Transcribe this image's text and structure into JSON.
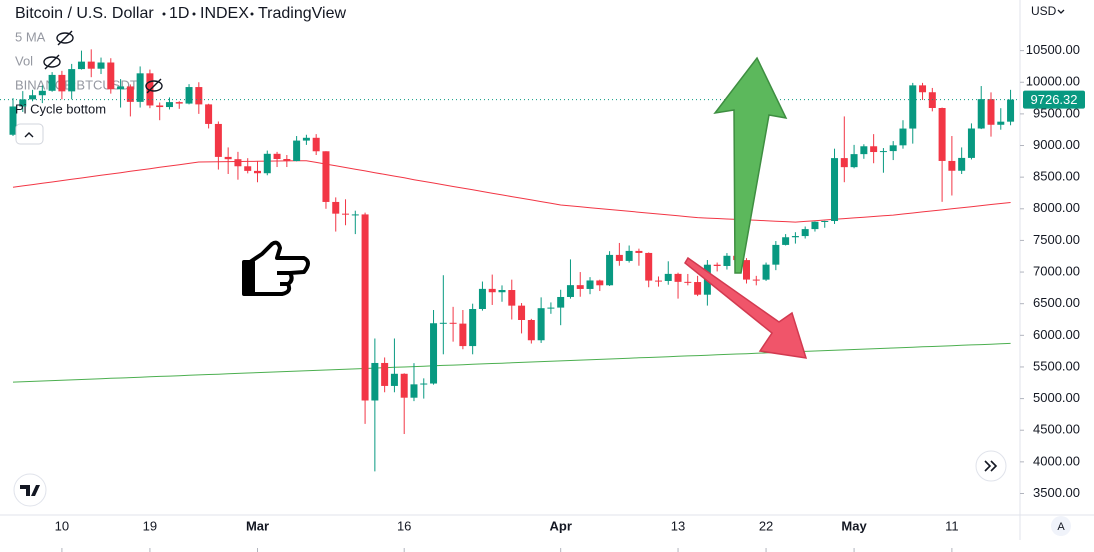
{
  "header": {
    "title": "Bitcoin / U.S. Dollar",
    "interval": "1D",
    "exchange": "INDEX",
    "source": "TradingView",
    "currency": "USD"
  },
  "legend": {
    "indicators": [
      "5 MA",
      "Vol",
      "BINANCE:BTCUSDT",
      "Pi Cycle bottom"
    ]
  },
  "scale_button": "A",
  "chart_data": {
    "type": "candlestick",
    "categories": [
      null,
      null,
      null,
      null,
      null,
      "10",
      null,
      null,
      null,
      null,
      null,
      null,
      null,
      null,
      "19",
      null,
      null,
      null,
      null,
      null,
      null,
      null,
      null,
      null,
      null,
      "Mar",
      null,
      null,
      null,
      null,
      null,
      null,
      null,
      null,
      null,
      null,
      null,
      null,
      null,
      null,
      "16",
      null,
      null,
      null,
      null,
      null,
      null,
      null,
      null,
      null,
      null,
      null,
      null,
      null,
      null,
      null,
      "Apr",
      null,
      null,
      null,
      null,
      null,
      null,
      null,
      null,
      null,
      null,
      null,
      "13",
      null,
      null,
      null,
      null,
      null,
      null,
      null,
      null,
      "22",
      null,
      null,
      null,
      null,
      null,
      null,
      null,
      null,
      "May",
      null,
      null,
      null,
      null,
      null,
      null,
      null,
      null,
      null,
      "11",
      null,
      null,
      null,
      null,
      null,
      null
    ],
    "open": [
      9170,
      9617,
      9729,
      9795,
      9865,
      10116,
      9856,
      10208,
      10326,
      10214,
      10312,
      9889,
      9934,
      9690,
      10141,
      9633,
      9608,
      9686,
      9663,
      9924,
      9650,
      9341,
      8820,
      8784,
      8672,
      8599,
      8562,
      8869,
      8787,
      8755,
      9078,
      9122,
      8909,
      8108,
      7923,
      7909,
      7911,
      4970,
      5563,
      5200,
      5392,
      5014,
      5225,
      5238,
      6191,
      6198,
      6185,
      5830,
      6416,
      6734,
      6681,
      6716,
      6469,
      6242,
      5922,
      6429,
      6438,
      6606,
      6793,
      6733,
      6867,
      6791,
      7271,
      7176,
      7334,
      7302,
      6865,
      6859,
      6971,
      6845,
      6842,
      6642,
      7116,
      7096,
      7257,
      7189,
      6881,
      6880,
      7117,
      7429,
      7550,
      7569,
      7679,
      7795,
      7807,
      8801,
      8658,
      8864,
      8988,
      8897,
      8912,
      9003,
      9268,
      9951,
      9842,
      9593,
      8756,
      8601,
      8804,
      9269,
      9733,
      9328,
      9377
    ],
    "high": [
      9750,
      9860,
      9880,
      9950,
      10160,
      10180,
      10290,
      10500,
      10520,
      10390,
      10380,
      10050,
      9965,
      10250,
      10200,
      9680,
      9760,
      9700,
      9970,
      10000,
      9660,
      9380,
      8970,
      8900,
      8800,
      8750,
      8920,
      8900,
      8850,
      9150,
      9170,
      9180,
      8910,
      8180,
      8150,
      7970,
      7940,
      5950,
      5650,
      5950,
      5400,
      5560,
      5320,
      6400,
      6950,
      6450,
      6400,
      6500,
      6850,
      6960,
      6790,
      6880,
      6510,
      6260,
      6600,
      6520,
      6720,
      7200,
      7000,
      6920,
      6880,
      7330,
      7460,
      7420,
      7370,
      7310,
      6930,
      7170,
      6990,
      6970,
      6940,
      7190,
      7150,
      7300,
      7260,
      7220,
      6940,
      7150,
      7490,
      7600,
      7630,
      7720,
      7800,
      7810,
      8950,
      9460,
      9010,
      9020,
      9180,
      8960,
      9070,
      9400,
      9990,
      9990,
      9910,
      9600,
      9150,
      8970,
      9350,
      9940,
      9840,
      9590,
      9880
    ],
    "low": [
      9150,
      9530,
      9700,
      9670,
      9850,
      9730,
      9730,
      10200,
      10080,
      10130,
      9820,
      9600,
      9460,
      9600,
      9590,
      9400,
      9570,
      9580,
      9650,
      9500,
      9270,
      8620,
      8550,
      8460,
      8560,
      8420,
      8530,
      8660,
      8660,
      8750,
      9010,
      8850,
      8000,
      7640,
      7740,
      7600,
      4600,
      3850,
      5100,
      5100,
      4440,
      4960,
      5000,
      5220,
      5700,
      5900,
      5780,
      5700,
      6390,
      6480,
      6530,
      6250,
      6030,
      5870,
      5880,
      6340,
      6160,
      6580,
      6610,
      6650,
      6700,
      6780,
      7100,
      7150,
      7100,
      6760,
      6770,
      6800,
      6580,
      6790,
      6620,
      6470,
      7010,
      7040,
      7050,
      6820,
      6790,
      6860,
      7030,
      7420,
      7450,
      7530,
      7640,
      7700,
      7760,
      8420,
      8640,
      8790,
      8720,
      8570,
      8770,
      8950,
      9030,
      9720,
      9540,
      8110,
      8210,
      8550,
      8780,
      9260,
      9140,
      9250,
      9320
    ],
    "close": [
      9617,
      9729,
      9795,
      9865,
      10116,
      9856,
      10208,
      10326,
      10214,
      10312,
      9889,
      9934,
      9690,
      10141,
      9633,
      9608,
      9686,
      9663,
      9924,
      9650,
      9341,
      8820,
      8784,
      8672,
      8599,
      8562,
      8869,
      8787,
      8755,
      9078,
      9122,
      8909,
      8108,
      7923,
      7909,
      7911,
      4970,
      5563,
      5200,
      5392,
      5014,
      5225,
      5238,
      6191,
      6198,
      6185,
      5830,
      6416,
      6734,
      6681,
      6716,
      6469,
      6242,
      5922,
      6429,
      6438,
      6606,
      6793,
      6733,
      6867,
      6791,
      7271,
      7176,
      7334,
      7302,
      6865,
      6859,
      6971,
      6845,
      6842,
      6642,
      7116,
      7096,
      7257,
      7189,
      6881,
      6880,
      7117,
      7429,
      7550,
      7569,
      7679,
      7795,
      7807,
      8801,
      8658,
      8864,
      8988,
      8897,
      8912,
      9003,
      9268,
      9951,
      9842,
      9593,
      8756,
      8601,
      8804,
      9269,
      9733,
      9328,
      9377,
      9726.32
    ],
    "up_color": "#089981",
    "down_color": "#f23645",
    "lines": [
      {
        "color": "#f23645",
        "values": [
          8340,
          8361,
          8382,
          8403,
          8424,
          8445,
          8466,
          8487,
          8508,
          8529,
          8550,
          8571,
          8592,
          8613,
          8634,
          8655,
          8676,
          8697,
          8718,
          8739,
          8741,
          8743,
          8745,
          8747,
          8749,
          8751,
          8753,
          8755,
          8757,
          8759,
          8760,
          8733,
          8706,
          8679,
          8652,
          8625,
          8598,
          8571,
          8544,
          8517,
          8490,
          8460,
          8433,
          8407,
          8380,
          8353,
          8327,
          8300,
          8273,
          8247,
          8220,
          8193,
          8167,
          8140,
          8113,
          8087,
          8060,
          8046,
          8031,
          8017,
          8003,
          7989,
          7974,
          7960,
          7946,
          7931,
          7917,
          7903,
          7889,
          7874,
          7860,
          7853,
          7846,
          7839,
          7832,
          7825,
          7818,
          7811,
          7804,
          7797,
          7790,
          7801,
          7812,
          7823,
          7834,
          7845,
          7856,
          7867,
          7878,
          7889,
          7900,
          7917,
          7933,
          7950,
          7967,
          7983,
          8000,
          8017,
          8033,
          8050,
          8067,
          8083,
          8100
        ]
      },
      {
        "color": "#4caf50",
        "values": [
          5260,
          5266,
          5272,
          5278,
          5284,
          5290,
          5296,
          5302,
          5308,
          5314,
          5320,
          5326,
          5332,
          5338,
          5344,
          5350,
          5356,
          5362,
          5368,
          5374,
          5380,
          5386,
          5392,
          5398,
          5404,
          5410,
          5416,
          5422,
          5428,
          5434,
          5440,
          5446,
          5452,
          5458,
          5464,
          5470,
          5476,
          5482,
          5488,
          5494,
          5500,
          5506,
          5512,
          5518,
          5524,
          5530,
          5536,
          5542,
          5548,
          5554,
          5560,
          5566,
          5572,
          5578,
          5584,
          5590,
          5596,
          5602,
          5608,
          5614,
          5620,
          5626,
          5632,
          5638,
          5644,
          5650,
          5656,
          5662,
          5668,
          5674,
          5680,
          5686,
          5692,
          5698,
          5704,
          5710,
          5716,
          5722,
          5728,
          5734,
          5740,
          5746,
          5752,
          5758,
          5764,
          5770,
          5776,
          5782,
          5788,
          5794,
          5800,
          5806,
          5812,
          5818,
          5824,
          5830,
          5836,
          5842,
          5848,
          5854,
          5860,
          5866,
          5872
        ]
      }
    ],
    "ylim": [
      3160,
      11300
    ],
    "yticks": [
      {
        "value": 3500,
        "label": "3500.00"
      },
      {
        "value": 4000,
        "label": "4000.00"
      },
      {
        "value": 4500,
        "label": "4500.00"
      },
      {
        "value": 5000,
        "label": "5000.00"
      },
      {
        "value": 5500,
        "label": "5500.00"
      },
      {
        "value": 6000,
        "label": "6000.00"
      },
      {
        "value": 6500,
        "label": "6500.00"
      },
      {
        "value": 7000,
        "label": "7000.00"
      },
      {
        "value": 7500,
        "label": "7500.00"
      },
      {
        "value": 8000,
        "label": "8000.00"
      },
      {
        "value": 8500,
        "label": "8500.00"
      },
      {
        "value": 9000,
        "label": "9000.00"
      },
      {
        "value": 9500,
        "label": "9500.00"
      },
      {
        "value": 10000,
        "label": "10000.00"
      },
      {
        "value": 10500,
        "label": "10500.00"
      }
    ]
  }
}
